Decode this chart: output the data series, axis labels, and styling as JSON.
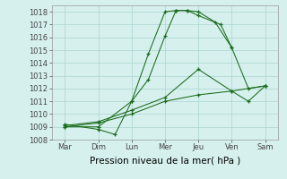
{
  "x_labels": [
    "Mar",
    "Dim",
    "Lun",
    "Mer",
    "Jeu",
    "Ven",
    "Sam"
  ],
  "line_color": "#1a6b1a",
  "background_color": "#d6f0ee",
  "grid_color": "#aad4ce",
  "xlabel": "Pression niveau de la mer( hPa )",
  "ylim": [
    1008,
    1018.5
  ],
  "yticks": [
    1008,
    1009,
    1010,
    1011,
    1012,
    1013,
    1014,
    1015,
    1016,
    1017,
    1018
  ],
  "label_fontsize": 7.5,
  "tick_fontsize": 6,
  "lines": [
    {
      "x": [
        0,
        1,
        2,
        2.5,
        3,
        3.33,
        3.67,
        4,
        4.5,
        5
      ],
      "y": [
        1009.0,
        1009.0,
        1011.0,
        1014.7,
        1018.0,
        1018.1,
        1018.1,
        1018.0,
        1017.2,
        1015.2
      ]
    },
    {
      "x": [
        0,
        1,
        1.5,
        2,
        2.5,
        3,
        3.33,
        3.67,
        4,
        4.67,
        5,
        5.5,
        6
      ],
      "y": [
        1009.2,
        1008.8,
        1008.4,
        1011.0,
        1012.7,
        1016.1,
        1018.1,
        1018.1,
        1017.7,
        1017.0,
        1015.2,
        1012.0,
        1012.2
      ]
    },
    {
      "x": [
        0,
        1,
        2,
        3,
        4,
        5,
        5.5,
        6
      ],
      "y": [
        1009.1,
        1009.4,
        1010.3,
        1011.3,
        1013.5,
        1011.8,
        1011.0,
        1012.2
      ]
    },
    {
      "x": [
        0,
        1,
        2,
        3,
        4,
        5,
        6
      ],
      "y": [
        1009.0,
        1009.3,
        1010.0,
        1011.0,
        1011.5,
        1011.8,
        1012.2
      ]
    }
  ]
}
